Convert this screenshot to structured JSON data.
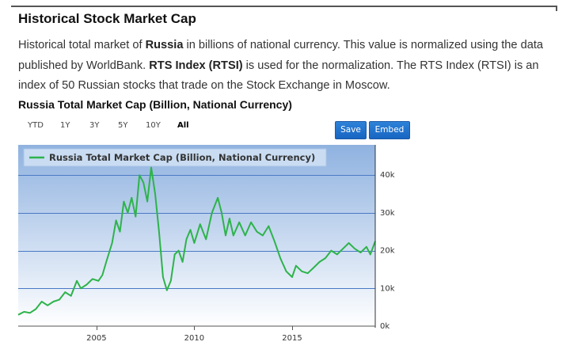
{
  "section": {
    "title": "Historical Stock Market Cap",
    "desc_1": "Historical total market of ",
    "country": "Russia",
    "desc_2": " in billions of national currency. This value is normalized using the data published by WorldBank. ",
    "index_name": "RTS Index (RTSI)",
    "desc_3": " is used for the normalization. The RTS Index (RTSI) is an index of 50 Russian stocks that trade on the Stock Exchange in Moscow."
  },
  "chart_title": "Russia Total Market Cap (Billion, National Currency)",
  "ranges": [
    "YTD",
    "1Y",
    "3Y",
    "5Y",
    "10Y",
    "All"
  ],
  "active_range": "All",
  "buttons": {
    "save": "Save",
    "embed": "Embed"
  },
  "colors": {
    "line": "#2db34a",
    "bg_top": "#8fb2e0",
    "bg_bottom": "#ffffff",
    "button": "#1f6fcc"
  },
  "chart_data": {
    "type": "line",
    "legend": "Russia Total Market Cap (Billion, National Currency)",
    "x_ticks": [
      2005,
      2010,
      2015
    ],
    "y_ticks": [
      0,
      10000,
      20000,
      30000,
      40000
    ],
    "y_tick_labels": [
      "0k",
      "10k",
      "20k",
      "30k",
      "40k"
    ],
    "xlim": [
      2001.0,
      2019.25
    ],
    "ylim": [
      0,
      48000
    ],
    "series": [
      {
        "name": "Russia Total Market Cap (Billion, National Currency)",
        "x": [
          2001.0,
          2001.3,
          2001.6,
          2001.9,
          2002.2,
          2002.5,
          2002.8,
          2003.1,
          2003.4,
          2003.7,
          2004.0,
          2004.2,
          2004.5,
          2004.8,
          2005.1,
          2005.3,
          2005.5,
          2005.8,
          2006.0,
          2006.2,
          2006.4,
          2006.6,
          2006.8,
          2007.0,
          2007.2,
          2007.4,
          2007.6,
          2007.8,
          2008.0,
          2008.2,
          2008.4,
          2008.6,
          2008.8,
          2009.0,
          2009.2,
          2009.4,
          2009.6,
          2009.8,
          2010.0,
          2010.3,
          2010.6,
          2010.9,
          2011.2,
          2011.4,
          2011.6,
          2011.8,
          2012.0,
          2012.3,
          2012.6,
          2012.9,
          2013.2,
          2013.5,
          2013.8,
          2014.1,
          2014.4,
          2014.7,
          2015.0,
          2015.2,
          2015.5,
          2015.8,
          2016.1,
          2016.4,
          2016.7,
          2017.0,
          2017.3,
          2017.6,
          2017.9,
          2018.2,
          2018.5,
          2018.8,
          2019.0,
          2019.25
        ],
        "values": [
          3000,
          3800,
          3500,
          4500,
          6500,
          5500,
          6500,
          7000,
          9000,
          8000,
          12000,
          10000,
          11000,
          12500,
          12000,
          13500,
          17000,
          22000,
          28000,
          25000,
          33000,
          30000,
          34000,
          29000,
          40000,
          38000,
          33000,
          42000,
          35000,
          25000,
          13000,
          9500,
          12000,
          19000,
          20000,
          17000,
          23000,
          25500,
          22000,
          27000,
          23000,
          30000,
          34000,
          30000,
          24000,
          28500,
          24000,
          27500,
          24000,
          27500,
          25000,
          24000,
          26500,
          22500,
          18000,
          14500,
          13000,
          16000,
          14500,
          14000,
          15500,
          17000,
          18000,
          20000,
          19000,
          20500,
          22000,
          20500,
          19500,
          21000,
          19000,
          22500
        ]
      }
    ]
  }
}
